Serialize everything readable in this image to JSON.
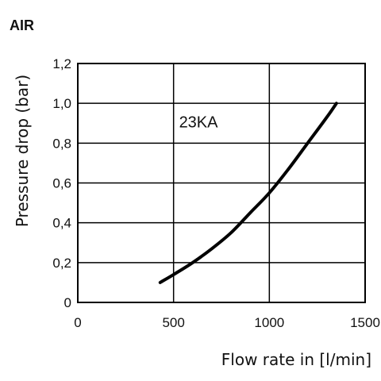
{
  "chart_data": {
    "type": "line",
    "title": "AIR",
    "xlabel": "Flow rate in [l/min]",
    "ylabel": "Pressure drop (bar)",
    "xlim": [
      0,
      1500
    ],
    "ylim": [
      0,
      1.2
    ],
    "x_ticks": [
      0,
      500,
      1000,
      1500
    ],
    "x_tick_labels": [
      "0",
      "500",
      "1000",
      "1500"
    ],
    "y_ticks": [
      0,
      0.2,
      0.4,
      0.6,
      0.8,
      1.0,
      1.2
    ],
    "y_tick_labels": [
      "0",
      "0,2",
      "0,4",
      "0,6",
      "0,8",
      "1,0",
      "1,2"
    ],
    "grid": true,
    "series": [
      {
        "name": "23KA",
        "color": "#000000",
        "x": [
          430,
          500,
          600,
          700,
          800,
          900,
          1000,
          1100,
          1200,
          1300,
          1350
        ],
        "y": [
          0.1,
          0.14,
          0.2,
          0.27,
          0.35,
          0.45,
          0.55,
          0.67,
          0.8,
          0.93,
          1.0
        ]
      }
    ]
  }
}
